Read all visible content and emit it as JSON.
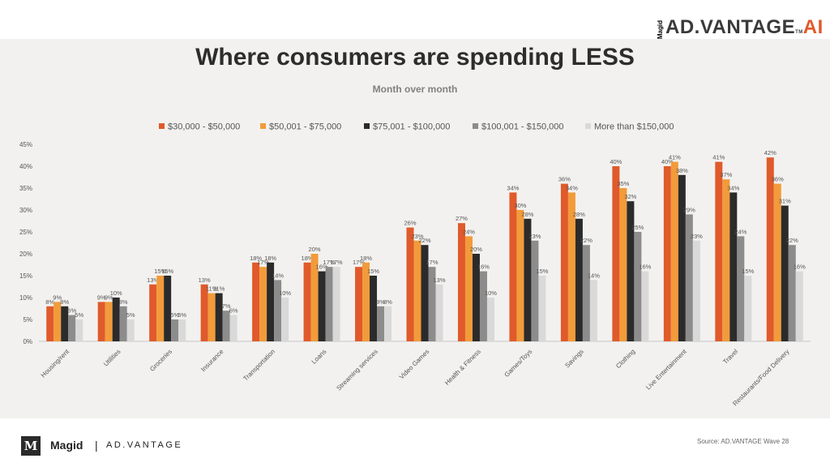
{
  "header": {
    "logo_small": "Magid",
    "logo_main": "AD.VANTAGE",
    "logo_suffix": "AI",
    "logo_tm": "TM"
  },
  "footer": {
    "brand": "Magid",
    "separator": "|",
    "brand_product": "AD.VANTAGE",
    "source": "Source: AD.VANTAGE Wave 28"
  },
  "colors": {
    "series": [
      "#e05a2b",
      "#f29b3a",
      "#2b2b2b",
      "#8c8c8c",
      "#d9d9d9"
    ],
    "background": "#f2f1ef"
  },
  "chart_data": {
    "type": "bar",
    "title": "Where consumers are spending LESS",
    "subtitle": "Month over month",
    "legend_position": "top",
    "ylim": [
      0,
      45
    ],
    "yticks": [
      "0%",
      "5%",
      "10%",
      "15%",
      "20%",
      "25%",
      "30%",
      "35%",
      "40%",
      "45%"
    ],
    "grid": false,
    "categories": [
      "Housing/rent",
      "Utilities",
      "Groceries",
      "Insurance",
      "Transportation",
      "Loans",
      "Streaming services",
      "Video Games",
      "Health & Fitness",
      "Games/Toys",
      "Savings",
      "Clothing",
      "Live Entertainment",
      "Travel",
      "Restaurants/Food Delivery"
    ],
    "series": [
      {
        "name": "$30,000 - $50,000",
        "values": [
          8,
          9,
          13,
          13,
          18,
          18,
          17,
          26,
          27,
          34,
          36,
          40,
          40,
          41,
          42
        ]
      },
      {
        "name": "$50,001 - $75,000",
        "values": [
          9,
          9,
          15,
          11,
          17,
          20,
          18,
          23,
          24,
          30,
          34,
          35,
          41,
          37,
          36
        ]
      },
      {
        "name": "$75,001 - $100,000",
        "values": [
          8,
          10,
          15,
          11,
          18,
          16,
          15,
          22,
          20,
          28,
          28,
          32,
          38,
          34,
          31
        ]
      },
      {
        "name": "$100,001 - $150,000",
        "values": [
          6,
          8,
          5,
          7,
          14,
          17,
          8,
          17,
          16,
          23,
          22,
          25,
          29,
          24,
          22
        ]
      },
      {
        "name": "More than $150,000",
        "values": [
          5,
          5,
          5,
          6,
          10,
          17,
          8,
          13,
          10,
          15,
          14,
          16,
          23,
          15,
          16
        ]
      }
    ]
  }
}
